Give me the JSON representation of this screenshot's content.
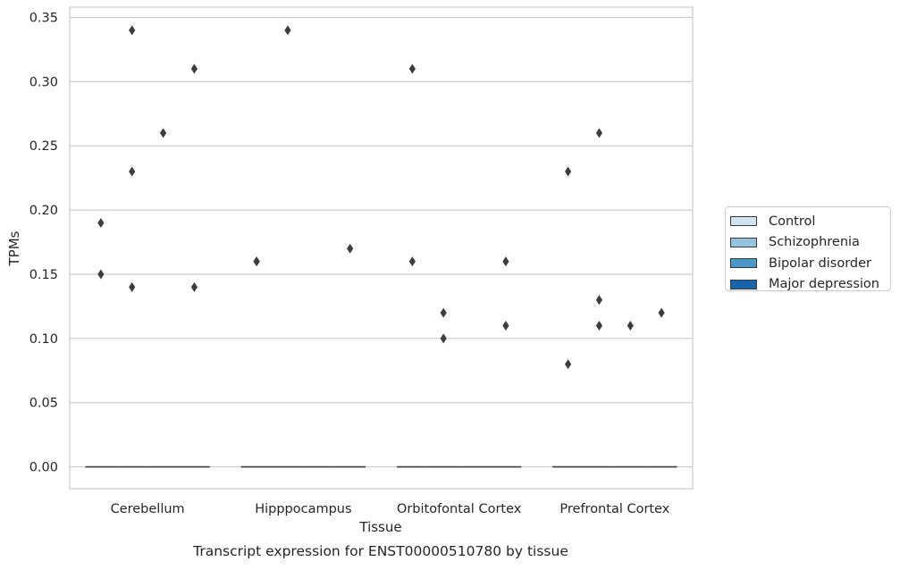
{
  "chart_data": {
    "type": "box",
    "title": "Transcript expression for ENST00000510780 by tissue",
    "xlabel": "Tissue",
    "ylabel": "TPMs",
    "categories": [
      "Cerebellum",
      "Hipppocampus",
      "Orbitofontal Cortex",
      "Prefrontal Cortex"
    ],
    "ylim": [
      -0.017,
      0.358
    ],
    "yticks": [
      0.0,
      0.05,
      0.1,
      0.15,
      0.2,
      0.25,
      0.3,
      0.35
    ],
    "ytick_labels": [
      "0.00",
      "0.05",
      "0.10",
      "0.15",
      "0.20",
      "0.25",
      "0.30",
      "0.35"
    ],
    "grid": "horizontal",
    "legend_position": "right",
    "series": [
      {
        "name": "Control",
        "color": "#d0e1f2",
        "median": [
          0,
          0,
          0,
          0
        ],
        "outliers": [
          [
            0.19,
            0.15
          ],
          [
            0.16,
            0.16
          ],
          [
            0.31,
            0.16
          ],
          [
            0.08,
            0.23
          ]
        ]
      },
      {
        "name": "Schizophrenia",
        "color": "#94c4df",
        "median": [
          0,
          0,
          0,
          0
        ],
        "outliers": [
          [
            0.34,
            0.23,
            0.14
          ],
          [
            0.34
          ],
          [
            0.1,
            0.12
          ],
          [
            0.26,
            0.13,
            0.11
          ]
        ]
      },
      {
        "name": "Bipolar disorder",
        "color": "#4a98c9",
        "median": [
          0,
          0,
          0,
          0
        ],
        "outliers": [
          [
            0.26
          ],
          [],
          [],
          [
            0.11
          ]
        ]
      },
      {
        "name": "Major depression",
        "color": "#1764ab",
        "median": [
          0,
          0,
          0,
          0
        ],
        "outliers": [
          [
            0.31,
            0.14
          ],
          [
            0.17
          ],
          [
            0.16,
            0.11
          ],
          [
            0.12
          ]
        ]
      }
    ]
  }
}
